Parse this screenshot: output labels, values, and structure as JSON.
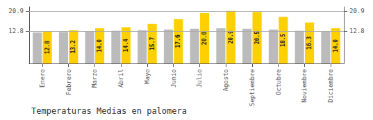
{
  "chart_data": {
    "type": "bar",
    "title": "Temperaturas Medias en palomera",
    "categories": [
      "Enero",
      "Febrero",
      "Marzo",
      "Abril",
      "Mayo",
      "Junio",
      "Julio",
      "Agosto",
      "Septiembre",
      "Octubre",
      "Noviembre",
      "Diciembre"
    ],
    "series": [
      {
        "color": "#BBBBBB",
        "values": [
          12.3,
          12.5,
          12.8,
          13.0,
          13.2,
          13.5,
          13.8,
          14.0,
          13.8,
          13.5,
          13.0,
          12.8
        ]
      },
      {
        "color": "#FFD000",
        "values": [
          12.8,
          13.2,
          14.0,
          14.4,
          15.7,
          17.6,
          20.0,
          20.9,
          20.5,
          18.5,
          16.3,
          14.0
        ],
        "data_labels": true,
        "value_labels": [
          "12.8",
          "13.2",
          "14.0",
          "14.4",
          "15.7",
          "17.6",
          "20.0",
          "20.9",
          "20.5",
          "18.5",
          "16.3",
          "14.0"
        ]
      }
    ],
    "ylim": [
      0,
      22.5
    ],
    "yticks": [
      12.8,
      20.9
    ],
    "grid": true
  }
}
